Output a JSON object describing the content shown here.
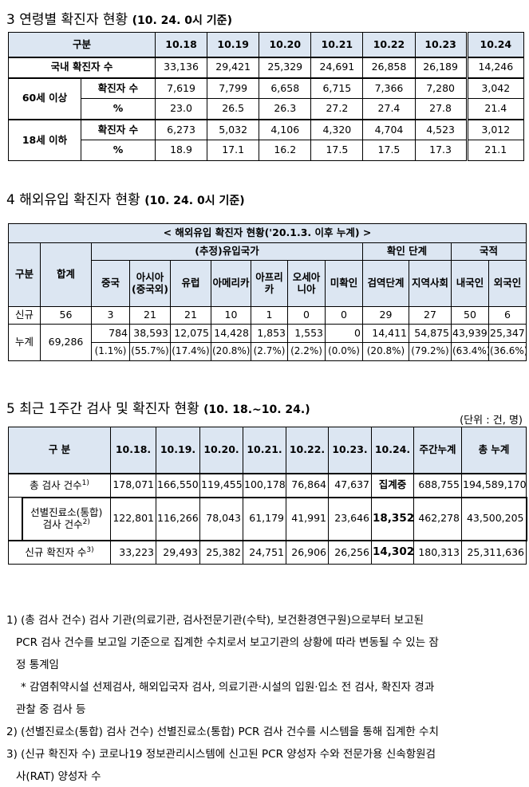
{
  "section3": {
    "title": "3 연령별 확진자 현황",
    "basis": "(10. 24. 0시 기준)",
    "header": [
      "구분",
      "10.18",
      "10.19",
      "10.20",
      "10.21",
      "10.22",
      "10.23",
      "10.24"
    ],
    "rows": [
      {
        "label": "국내 확진자 수",
        "values": [
          "33,136",
          "29,421",
          "25,329",
          "24,691",
          "26,858",
          "26,189",
          "14,246"
        ]
      },
      {
        "group": "60세 이상",
        "label": "확진자 수",
        "values": [
          "7,619",
          "7,799",
          "6,658",
          "6,715",
          "7,366",
          "7,280",
          "3,042"
        ]
      },
      {
        "group": "60세 이상",
        "label": "%",
        "values": [
          "23.0",
          "26.5",
          "26.3",
          "27.2",
          "27.4",
          "27.8",
          "21.4"
        ]
      },
      {
        "group": "18세 이하",
        "label": "확진자 수",
        "values": [
          "6,273",
          "5,032",
          "4,106",
          "4,320",
          "4,704",
          "4,523",
          "3,012"
        ]
      },
      {
        "group": "18세 이하",
        "label": "%",
        "values": [
          "18.9",
          "17.1",
          "16.2",
          "17.5",
          "17.5",
          "17.3",
          "21.1"
        ]
      }
    ],
    "group_60": "60세 이상",
    "group_18": "18세 이하"
  },
  "section4": {
    "title": "4 해외유입 확진자 현황",
    "basis": "(10. 24. 0시 기준)",
    "table_title": "< 해외유입 확진자 현황('20.1.3. 이후 누계) >",
    "col_gubun": "구분",
    "col_total": "합계",
    "group_countries": "(추정)유입국가",
    "group_stage": "확인 단계",
    "group_nationality": "국적",
    "countries": [
      "중국",
      "아시아(중국외)",
      "유럽",
      "아메리카",
      "아프리카",
      "오세아니아",
      "미확인"
    ],
    "stages": [
      "검역단계",
      "지역사회"
    ],
    "nationalities": [
      "내국인",
      "외국인"
    ],
    "new_label": "신규",
    "new_values": [
      "56",
      "3",
      "21",
      "21",
      "10",
      "1",
      "0",
      "0",
      "29",
      "27",
      "50",
      "6"
    ],
    "cum_label": "누계",
    "cum_total": "69,286",
    "cum_values": [
      "784",
      "38,593",
      "12,075",
      "14,428",
      "1,853",
      "1,553",
      "0",
      "14,411",
      "54,875",
      "43,939",
      "25,347"
    ],
    "cum_pct": [
      "(1.1%)",
      "(55.7%)",
      "(17.4%)",
      "(20.8%)",
      "(2.7%)",
      "(2.2%)",
      "(0.0%)",
      "(20.8%)",
      "(79.2%)",
      "(63.4%)",
      "(36.6%)"
    ]
  },
  "section5": {
    "title": "5 최근 1주간 검사 및 확진자 현황",
    "basis": "(10. 18.~10. 24.)",
    "unit": "(단위 : 건, 명)",
    "header": [
      "구 분",
      "10.18.",
      "10.19.",
      "10.20.",
      "10.21.",
      "10.22.",
      "10.23.",
      "10.24.",
      "주간누계",
      "총 누계"
    ],
    "row1_label": "총 검사 건수",
    "row1_sup": "1)",
    "row1_values": [
      "178,071",
      "166,550",
      "119,455",
      "100,178",
      "76,864",
      "47,637",
      "집계중",
      "688,755",
      "194,589,170"
    ],
    "row2_label_a": "선별진료소(통합)",
    "row2_label_b": "검사 건수",
    "row2_sup": "2)",
    "row2_values": [
      "122,801",
      "116,266",
      "78,043",
      "61,179",
      "41,991",
      "23,646",
      "18,352",
      "462,278",
      "43,500,205"
    ],
    "row3_label": "신규 확진자 수",
    "row3_sup": "3)",
    "row3_values": [
      "33,223",
      "29,493",
      "25,382",
      "24,751",
      "26,906",
      "26,256",
      "14,302",
      "180,313",
      "25,311,636"
    ]
  },
  "notes": {
    "n1_a": "1) (총 검사 건수) 검사 기관(의료기관, 검사전문기관(수탁), 보건환경연구원)으로부터 보고된",
    "n1_b": "PCR 검사 건수를 보고일 기준으로 집계한 수치로서 보고기관의 상황에 따라 변동될 수 있는 잠",
    "n1_c": "정 통계임",
    "n1_star_a": "* 감염취약시설 선제검사, 해외입국자 검사, 의료기관·시설의 입원·입소 전 검사, 확진자 경과",
    "n1_star_b": "관찰 중 검사 등",
    "n2": "2) (선별진료소(통합) 검사 건수) 선별진료소(통합) PCR 검사 건수를 시스템을 통해 집계한 수치",
    "n3_a": "3) (신규 확진자 수) 코로나19 정보관리시스템에 신고된 PCR 양성자 수와 전문가용 신속항원검",
    "n3_b": "사(RAT) 양성자 수"
  }
}
